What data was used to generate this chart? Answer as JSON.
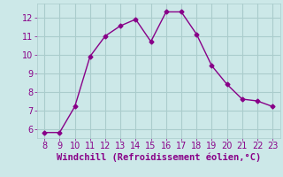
{
  "x": [
    8,
    9,
    10,
    11,
    12,
    13,
    14,
    15,
    16,
    17,
    18,
    19,
    20,
    21,
    22,
    23
  ],
  "y": [
    5.8,
    5.8,
    7.2,
    9.9,
    11.0,
    11.55,
    11.9,
    10.7,
    12.3,
    12.3,
    11.1,
    9.4,
    8.4,
    7.6,
    7.5,
    7.2
  ],
  "line_color": "#880088",
  "marker": "D",
  "marker_size": 2.5,
  "bg_color": "#cce8e8",
  "grid_color": "#aacccc",
  "xlabel": "Windchill (Refroidissement éolien,°C)",
  "xlabel_color": "#880088",
  "xlabel_fontsize": 7.5,
  "xlim": [
    7.5,
    23.5
  ],
  "ylim": [
    5.5,
    12.75
  ],
  "yticks": [
    6,
    7,
    8,
    9,
    10,
    11,
    12
  ],
  "xticks": [
    8,
    9,
    10,
    11,
    12,
    13,
    14,
    15,
    16,
    17,
    18,
    19,
    20,
    21,
    22,
    23
  ],
  "tick_fontsize": 7,
  "tick_color": "#880088"
}
